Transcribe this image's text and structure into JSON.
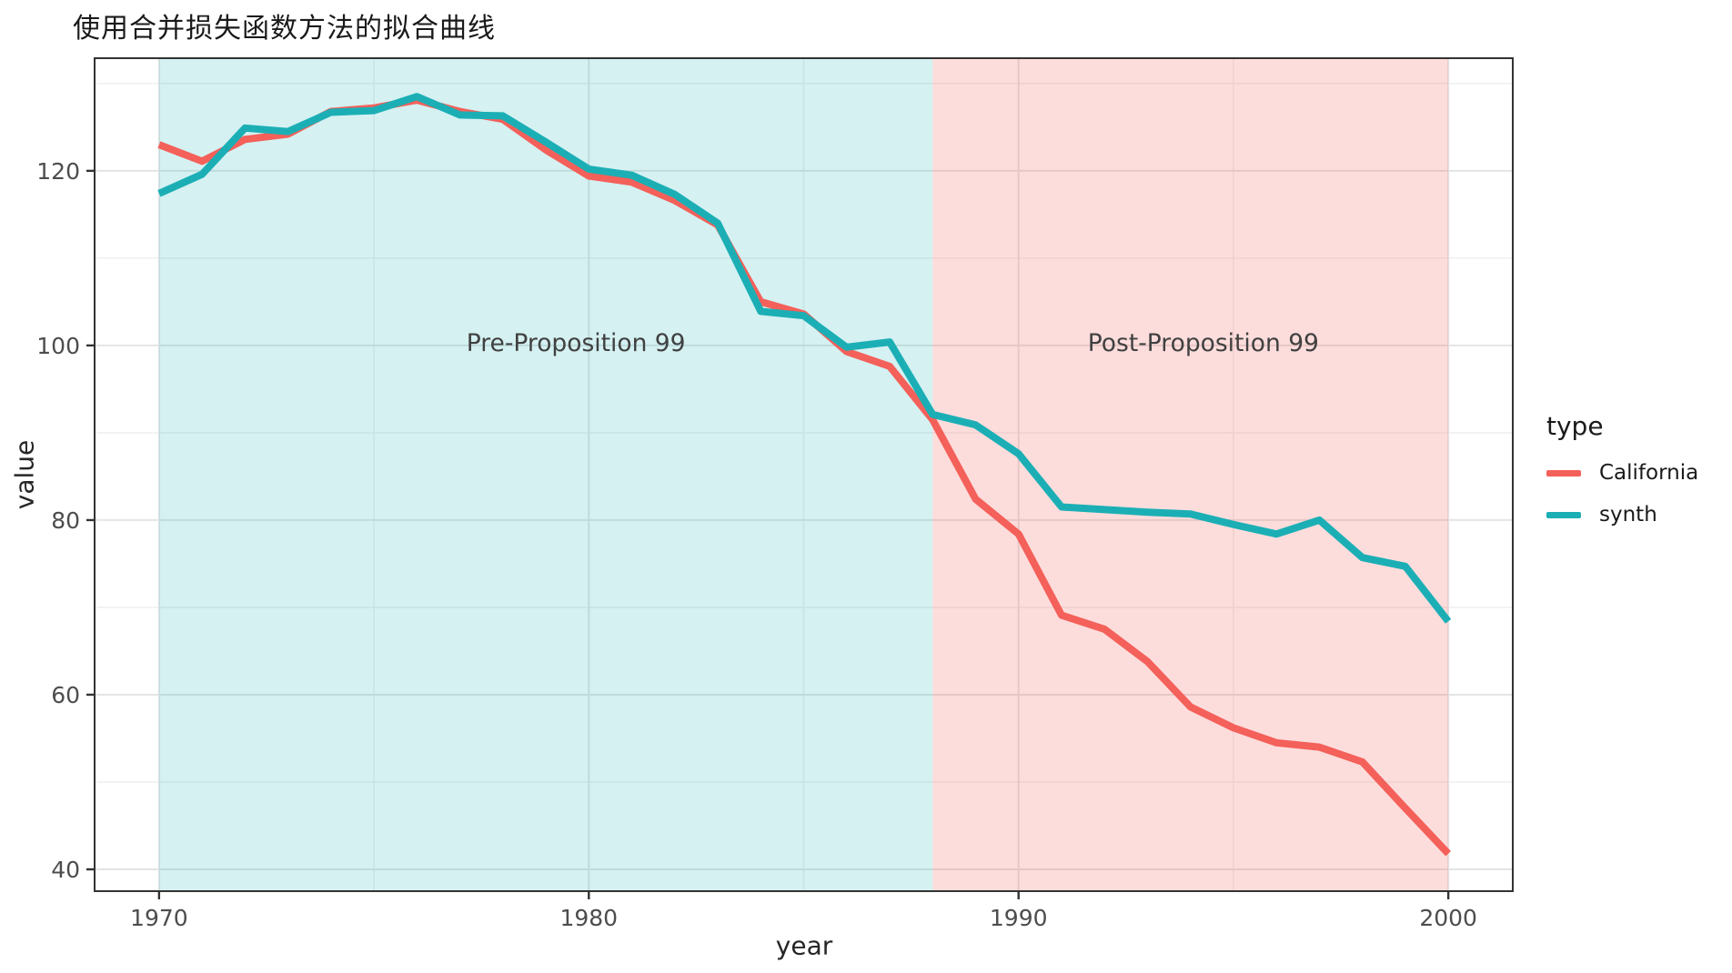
{
  "chart_data": {
    "type": "line",
    "title": "使用合并损失函数方法的拟合曲线",
    "xlabel": "year",
    "ylabel": "value",
    "x": [
      1970,
      1971,
      1972,
      1973,
      1974,
      1975,
      1976,
      1977,
      1978,
      1979,
      1980,
      1981,
      1982,
      1983,
      1984,
      1985,
      1986,
      1987,
      1988,
      1989,
      1990,
      1991,
      1992,
      1993,
      1994,
      1995,
      1996,
      1997,
      1998,
      1999,
      2000
    ],
    "series": [
      {
        "name": "California",
        "color": "#F4605A",
        "values": [
          123.0,
          121.1,
          123.6,
          124.2,
          126.8,
          127.2,
          128.1,
          126.8,
          125.9,
          122.4,
          119.4,
          118.7,
          116.6,
          113.8,
          105.0,
          103.6,
          99.3,
          97.6,
          91.5,
          82.4,
          78.4,
          69.1,
          67.5,
          63.8,
          58.6,
          56.2,
          54.5,
          54.0,
          52.3,
          47.0,
          41.8
        ]
      },
      {
        "name": "synth",
        "color": "#1BAFB5",
        "values": [
          117.4,
          119.6,
          124.9,
          124.5,
          126.7,
          126.9,
          128.5,
          126.4,
          126.3,
          123.3,
          120.2,
          119.5,
          117.3,
          114.0,
          103.9,
          103.4,
          99.8,
          100.4,
          92.1,
          90.9,
          87.6,
          81.5,
          81.2,
          80.9,
          80.7,
          79.5,
          78.4,
          80.0,
          75.7,
          74.7,
          68.4
        ]
      }
    ],
    "x_ticks": [
      1970,
      1980,
      1990,
      2000
    ],
    "y_ticks": [
      40,
      60,
      80,
      100,
      120
    ],
    "x_minor": [
      1975,
      1985,
      1995
    ],
    "y_minor": [
      50,
      70,
      90,
      110,
      130
    ],
    "x_domain": [
      1968.5,
      2001.5
    ],
    "y_domain": [
      37.5,
      132.9
    ],
    "regions": [
      {
        "label": "Pre-Proposition 99",
        "from": 1970,
        "to": 1988,
        "fill": "rgba(23,175,184,0.18)",
        "text_x": 1979.7,
        "text_y": 100.3
      },
      {
        "label": "Post-Proposition 99",
        "from": 1988,
        "to": 2000,
        "fill": "rgba(244,96,90,0.21)",
        "text_x": 1994.3,
        "text_y": 100.3
      }
    ],
    "legend": {
      "title": "type",
      "position": "right"
    },
    "grid": true,
    "style": {
      "grid_major": "#E4E4E4",
      "grid_minor": "#F0F0F0",
      "panel_border": "#333333",
      "tick_mark": "#333333",
      "tick_label_color": "#4D4D4D",
      "annotation_color": "#404040",
      "line_width": 8
    }
  }
}
